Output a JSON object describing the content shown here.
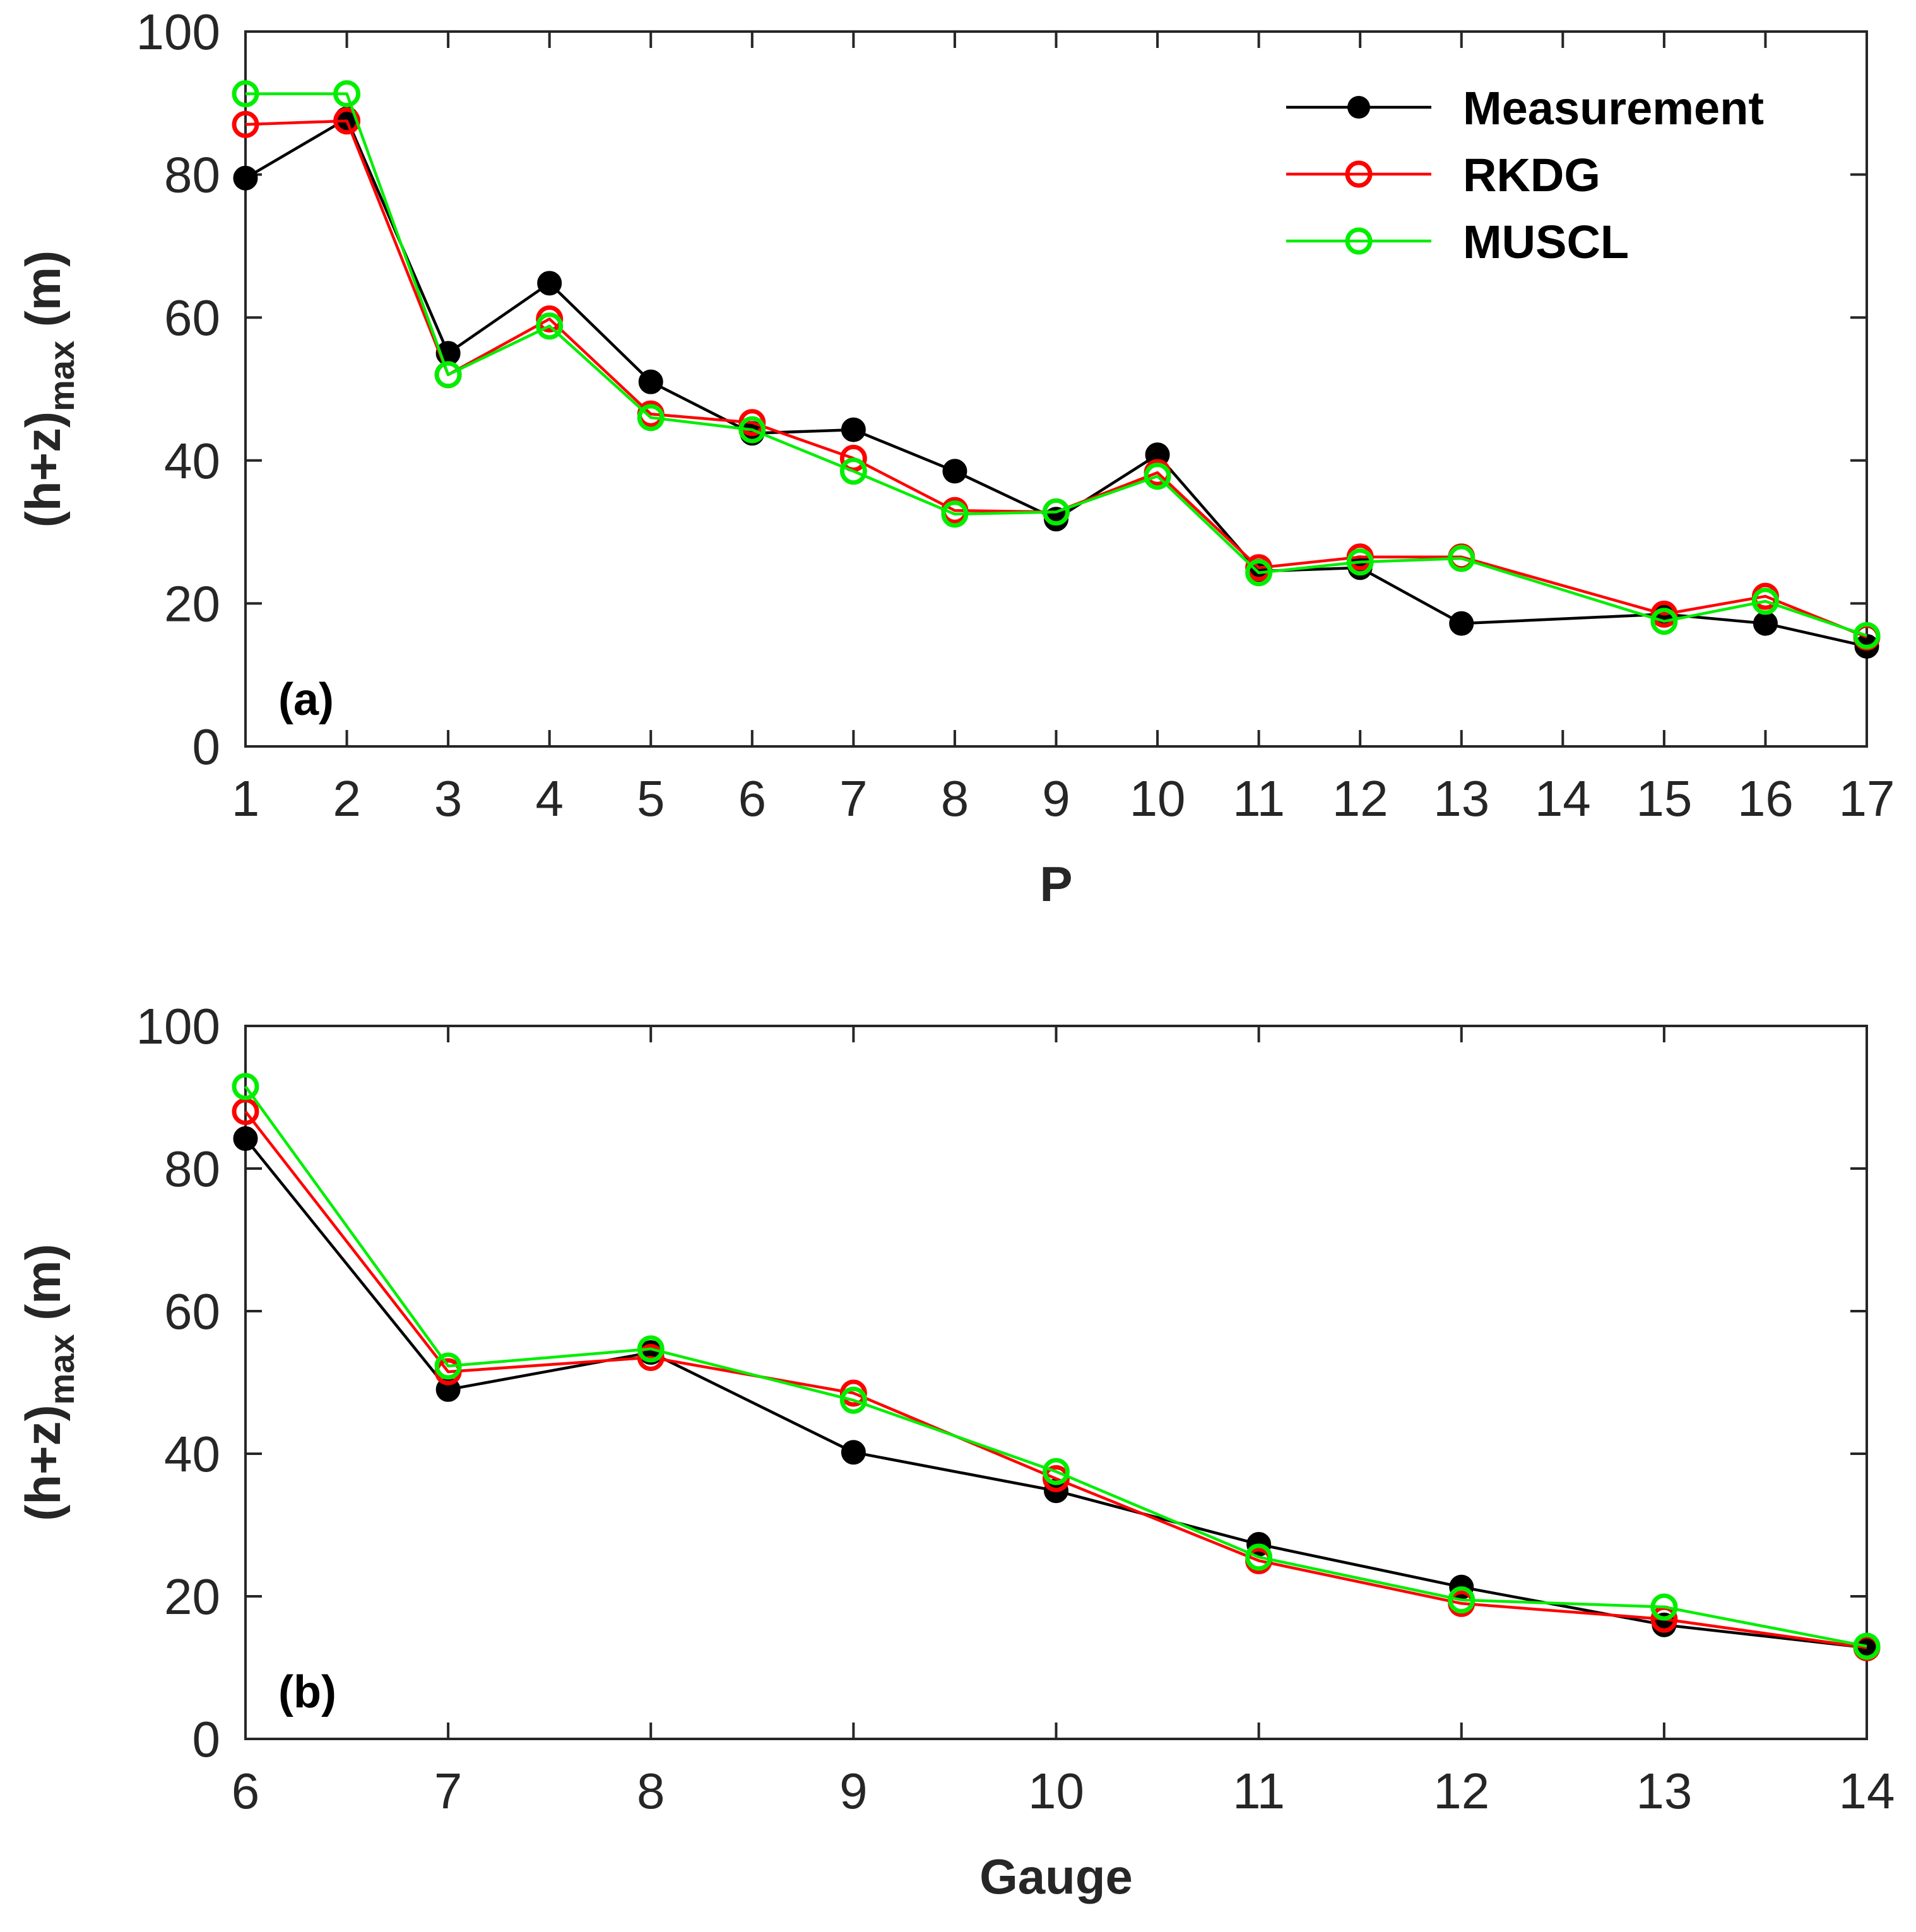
{
  "chart_data": [
    {
      "type": "line",
      "panel_label": "(a)",
      "xlabel": "P",
      "ylabel_main": "(h+z)",
      "ylabel_sub": "max",
      "ylabel_unit": "(m)",
      "ylim": [
        0,
        100
      ],
      "yticks": [
        "0",
        "20",
        "40",
        "60",
        "80",
        "100"
      ],
      "xlim": [
        1,
        17
      ],
      "xticks": [
        "1",
        "2",
        "3",
        "4",
        "5",
        "6",
        "7",
        "8",
        "9",
        "10",
        "11",
        "12",
        "13",
        "14",
        "15",
        "16",
        "17"
      ],
      "legend_position": "top-right",
      "series": [
        {
          "name": "Measurement",
          "color": "#000000",
          "marker": "filled-circle",
          "x": [
            1,
            2,
            3,
            4,
            5,
            6,
            7,
            8,
            9,
            10,
            11,
            12,
            13,
            15,
            16,
            17
          ],
          "y": [
            79.5,
            87.8,
            55.0,
            64.8,
            51.0,
            43.8,
            44.3,
            38.5,
            31.8,
            40.8,
            24.5,
            25.0,
            17.2,
            18.5,
            17.2,
            14.0
          ]
        },
        {
          "name": "RKDG",
          "color": "#ff0000",
          "marker": "open-circle",
          "x": [
            1,
            2,
            3,
            4,
            5,
            6,
            7,
            8,
            9,
            10,
            11,
            12,
            13,
            15,
            16,
            17
          ],
          "y": [
            87.0,
            87.5,
            52.0,
            59.8,
            46.5,
            45.3,
            40.3,
            33.0,
            32.8,
            38.3,
            25.0,
            26.5,
            26.5,
            18.5,
            21.0,
            15.3
          ]
        },
        {
          "name": "MUSCL",
          "color": "#00ee00",
          "marker": "open-circle",
          "x": [
            1,
            2,
            3,
            4,
            5,
            6,
            7,
            8,
            9,
            10,
            11,
            12,
            13,
            15,
            16,
            17
          ],
          "y": [
            91.3,
            91.3,
            52.0,
            58.8,
            46.0,
            44.3,
            38.5,
            32.5,
            32.8,
            37.8,
            24.3,
            25.8,
            26.3,
            17.5,
            20.3,
            15.5
          ]
        }
      ]
    },
    {
      "type": "line",
      "panel_label": "(b)",
      "xlabel": "Gauge",
      "ylabel_main": "(h+z)",
      "ylabel_sub": "max",
      "ylabel_unit": "(m)",
      "ylim": [
        0,
        100
      ],
      "yticks": [
        "0",
        "20",
        "40",
        "60",
        "80",
        "100"
      ],
      "xlim": [
        6,
        14
      ],
      "xticks": [
        "6",
        "7",
        "8",
        "9",
        "10",
        "11",
        "12",
        "13",
        "14"
      ],
      "series": [
        {
          "name": "Measurement",
          "color": "#000000",
          "marker": "filled-circle",
          "x": [
            6,
            7,
            8,
            9,
            10,
            11,
            12,
            13,
            14
          ],
          "y": [
            84.2,
            49.0,
            54.2,
            40.2,
            34.8,
            27.3,
            21.3,
            16.0,
            12.8
          ]
        },
        {
          "name": "RKDG",
          "color": "#ff0000",
          "marker": "open-circle",
          "x": [
            6,
            7,
            8,
            9,
            10,
            11,
            12,
            13,
            14
          ],
          "y": [
            88.0,
            51.5,
            53.5,
            48.5,
            36.5,
            25.0,
            19.0,
            16.8,
            12.8
          ]
        },
        {
          "name": "MUSCL",
          "color": "#00ee00",
          "marker": "open-circle",
          "x": [
            6,
            7,
            8,
            9,
            10,
            11,
            12,
            13,
            14
          ],
          "y": [
            91.5,
            52.3,
            54.7,
            47.5,
            37.5,
            25.5,
            19.5,
            18.5,
            13.0
          ]
        }
      ]
    }
  ]
}
